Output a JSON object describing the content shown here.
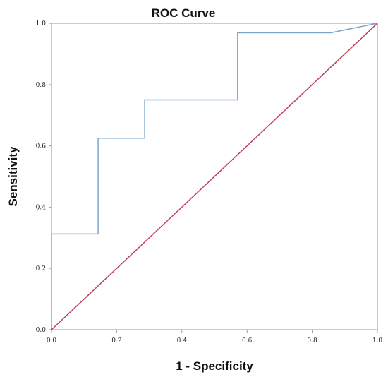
{
  "chart_data": {
    "type": "line",
    "title": "ROC Curve",
    "xlabel": "1 - Specificity",
    "ylabel": "Sensitivity",
    "xlim": [
      0,
      1
    ],
    "ylim": [
      0,
      1
    ],
    "xticks": [
      "0.0",
      "0.2",
      "0.4",
      "0.6",
      "0.8",
      "1.0"
    ],
    "yticks": [
      "0.0",
      "0.2",
      "0.4",
      "0.6",
      "0.8",
      "1.0"
    ],
    "grid": false,
    "legend": "none",
    "series": [
      {
        "color": "#7ba7cf",
        "x": [
          0,
          0,
          0.143,
          0.143,
          0.286,
          0.286,
          0.571,
          0.571,
          0.857,
          1.0
        ],
        "y": [
          0,
          0.3125,
          0.3125,
          0.625,
          0.625,
          0.75,
          0.75,
          0.969,
          0.969,
          1.0
        ]
      },
      {
        "color": "#c0405a",
        "x": [
          0,
          1
        ],
        "y": [
          0,
          1
        ]
      }
    ]
  }
}
